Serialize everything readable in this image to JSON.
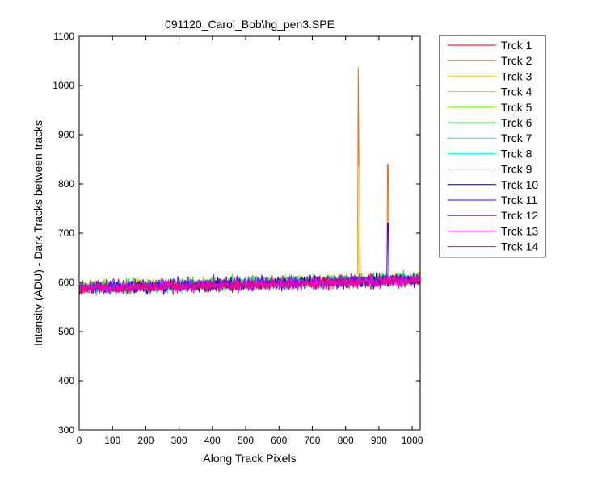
{
  "chart_data": {
    "type": "line",
    "title": "091120_Carol_Bob\\hg_pen3.SPE",
    "xlabel": "Along Track Pixels",
    "ylabel": "Intensity (ADU) - Dark Tracks between tracks",
    "xlim": [
      0,
      1024
    ],
    "ylim": [
      300,
      1100
    ],
    "x_ticks": [
      0,
      100,
      200,
      300,
      400,
      500,
      600,
      700,
      800,
      900,
      1000
    ],
    "y_ticks": [
      300,
      400,
      500,
      600,
      700,
      800,
      900,
      1000,
      1100
    ],
    "grid": false,
    "legend_position": "outside-right",
    "noise_note": "dense noisy traces ~±10 ADU",
    "baseline": {
      "x": [
        0,
        1024
      ],
      "y": [
        590,
        606
      ]
    },
    "series": [
      {
        "name": "Trck 1",
        "color": "#cc0000",
        "spikes": []
      },
      {
        "name": "Trck 2",
        "color": "#ff6600",
        "spikes": [
          {
            "x": 838,
            "y": 1037
          },
          {
            "x": 841,
            "y": 838
          },
          {
            "x": 927,
            "y": 840
          }
        ]
      },
      {
        "name": "Trck 3",
        "color": "#ffcc00",
        "spikes": [
          {
            "x": 838,
            "y": 720
          }
        ]
      },
      {
        "name": "Trck 4",
        "color": "#cccc00",
        "spikes": []
      },
      {
        "name": "Trck 5",
        "color": "#66ff00",
        "spikes": []
      },
      {
        "name": "Trck 6",
        "color": "#00ff33",
        "spikes": []
      },
      {
        "name": "Trck 7",
        "color": "#00ff99",
        "spikes": []
      },
      {
        "name": "Trck 8",
        "color": "#00ffff",
        "spikes": []
      },
      {
        "name": "Trck 9",
        "color": "#0099ff",
        "spikes": []
      },
      {
        "name": "Trck 10",
        "color": "#000066",
        "spikes": []
      },
      {
        "name": "Trck 11",
        "color": "#3300ff",
        "spikes": [
          {
            "x": 927,
            "y": 720
          }
        ]
      },
      {
        "name": "Trck 12",
        "color": "#9900ff",
        "spikes": []
      },
      {
        "name": "Trck 13",
        "color": "#ff00ff",
        "spikes": []
      },
      {
        "name": "Trck 14",
        "color": "#ff0066",
        "spikes": []
      }
    ]
  }
}
